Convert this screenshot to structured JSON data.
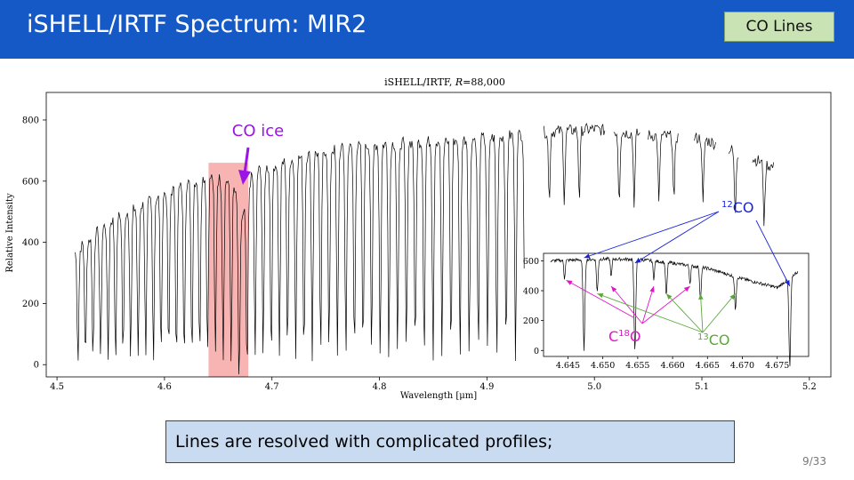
{
  "slide": {
    "title": "iSHELL/IRTF Spectrum: MIR2",
    "badge": "CO Lines",
    "caption": "Lines are resolved with complicated profiles;",
    "page": "9/33"
  },
  "colors": {
    "header": "#1559c6",
    "badge_bg": "#c9e3b5",
    "caption_bg": "#c9dbf0",
    "co_ice": "#9b14e6",
    "c12o": "#1a22d8",
    "c18o": "#e214c8",
    "c13o": "#5aa83a",
    "highlight": "#f7b4b2",
    "spectrum": "#000000"
  },
  "annotations": {
    "co_ice": "CO ice",
    "c12_sup": "12",
    "c12_text": "CO",
    "c18_pre": "C",
    "c18_sup": "18",
    "c18_post": "O",
    "c13_sup": "13",
    "c13_text": "CO"
  },
  "chart_data": [
    {
      "type": "line",
      "title": "iSHELL/IRTF, R=88,000",
      "title_prefix": "iSHELL/IRTF, ",
      "title_italic": "R",
      "title_suffix": "=88,000",
      "xlabel": "Wavelength [μm]",
      "ylabel": "Relative Intensity",
      "xlim": [
        4.49,
        5.22
      ],
      "ylim": [
        -40,
        890
      ],
      "xticks": [
        4.5,
        4.6,
        4.7,
        4.8,
        4.9,
        5.0,
        5.1,
        5.2
      ],
      "xtick_labels": [
        "4.5",
        "4.6",
        "4.7",
        "4.8",
        "4.9",
        "5.0",
        "5.1",
        "5.2"
      ],
      "yticks": [
        0,
        200,
        400,
        600,
        800
      ],
      "ytick_labels": [
        "0",
        "200",
        "400",
        "600",
        "800"
      ],
      "highlight_range": [
        4.641,
        4.678
      ],
      "continuum": {
        "x": [
          4.517,
          4.55,
          4.6,
          4.64,
          4.66,
          4.7,
          4.75,
          4.8,
          4.85,
          4.9,
          4.95,
          5.0,
          5.05,
          5.1,
          5.15,
          5.17
        ],
        "y": [
          370,
          470,
          560,
          615,
          600,
          650,
          700,
          720,
          730,
          740,
          760,
          770,
          750,
          740,
          670,
          640
        ]
      },
      "segments": [
        [
          4.517,
          4.935
        ],
        [
          4.953,
          5.01
        ],
        [
          5.018,
          5.043
        ],
        [
          5.05,
          5.078
        ],
        [
          5.093,
          5.113
        ],
        [
          5.125,
          5.134
        ],
        [
          5.147,
          5.167
        ]
      ],
      "absorption_lines_um": [
        4.5195,
        4.5265,
        4.5335,
        4.5405,
        4.5475,
        4.5545,
        4.5615,
        4.5685,
        4.5755,
        4.5826,
        4.5897,
        4.5968,
        4.6039,
        4.6111,
        4.6183,
        4.6255,
        4.6327,
        4.64,
        4.6473,
        4.6546,
        4.662,
        4.6694,
        4.6768,
        4.6843,
        4.6918,
        4.6993,
        4.7069,
        4.7145,
        4.7221,
        4.7298,
        4.7375,
        4.7453,
        4.7531,
        4.7609,
        4.7688,
        4.7767,
        4.7847,
        4.7927,
        4.8007,
        4.8088,
        4.8169,
        4.8251,
        4.8333,
        4.8416,
        4.8499,
        4.8582,
        4.8666,
        4.875,
        4.8835,
        4.892,
        4.9006,
        4.9092,
        4.9179,
        4.9266,
        4.9354,
        4.958,
        4.972,
        4.986,
        5.023,
        5.037,
        5.06,
        5.074,
        5.101,
        5.131,
        5.158
      ]
    },
    {
      "type": "line",
      "xlim": [
        4.6415,
        4.6795
      ],
      "ylim": [
        -40,
        650
      ],
      "xticks": [
        4.645,
        4.65,
        4.655,
        4.66,
        4.665,
        4.67,
        4.675
      ],
      "xtick_labels": [
        "4.645",
        "4.650",
        "4.655",
        "4.660",
        "4.665",
        "4.670",
        "4.675"
      ],
      "yticks": [
        0,
        200,
        400,
        600
      ],
      "ytick_labels": [
        "0",
        "200",
        "400",
        "600"
      ],
      "continuum": {
        "x": [
          4.6425,
          4.65,
          4.655,
          4.66,
          4.665,
          4.67,
          4.675,
          4.678
        ],
        "y": [
          600,
          612,
          610,
          585,
          550,
          480,
          420,
          530
        ]
      },
      "lines_12co": [
        4.6473,
        4.6546,
        4.6768
      ],
      "lines_13co": [
        4.6492,
        4.6591,
        4.664,
        4.669
      ],
      "lines_c18o": [
        4.6445,
        4.6512,
        4.6573,
        4.6625
      ]
    }
  ]
}
